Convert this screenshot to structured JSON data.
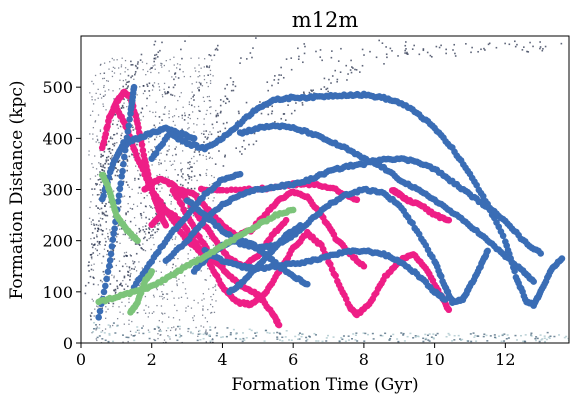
{
  "chart_data": {
    "type": "scatter",
    "title": "m12m",
    "xlabel": "Formation Time (Gyr)",
    "ylabel": "Formation Distance (kpc)",
    "xlim": [
      0,
      13.8
    ],
    "ylim": [
      0,
      600
    ],
    "xticks": [
      0,
      2,
      4,
      6,
      8,
      10,
      12
    ],
    "yticks": [
      0,
      100,
      200,
      300,
      400,
      500
    ],
    "grid": false,
    "legend": "none",
    "colors": {
      "background_density": "#1a2440",
      "pink": "#ee1e86",
      "blue": "#3a6db5",
      "green": "#7cc47a",
      "disk": "#a9c6cc"
    },
    "series": [
      {
        "color": "pink",
        "tracks": [
          [
            [
              0.6,
              380
            ],
            [
              0.8,
              440
            ],
            [
              1.0,
              470
            ],
            [
              1.2,
              490
            ],
            [
              1.4,
              480
            ],
            [
              1.6,
              430
            ],
            [
              1.8,
              360
            ],
            [
              2.0,
              300
            ],
            [
              2.2,
              260
            ],
            [
              2.4,
              230
            ]
          ],
          [
            [
              1.0,
              460
            ],
            [
              1.3,
              420
            ],
            [
              1.6,
              360
            ],
            [
              2.0,
              300
            ],
            [
              2.5,
              250
            ],
            [
              3.0,
              200
            ],
            [
              3.5,
              170
            ],
            [
              4.0,
              150
            ]
          ],
          [
            [
              1.8,
              300
            ],
            [
              2.2,
              320
            ],
            [
              2.6,
              310
            ],
            [
              3.0,
              280
            ],
            [
              3.4,
              240
            ],
            [
              3.8,
              200
            ],
            [
              4.2,
              165
            ],
            [
              4.6,
              150
            ],
            [
              5.0,
              170
            ],
            [
              5.4,
              210
            ],
            [
              5.8,
              240
            ]
          ],
          [
            [
              2.0,
              230
            ],
            [
              2.4,
              260
            ],
            [
              2.8,
              240
            ],
            [
              3.2,
              200
            ],
            [
              3.6,
              160
            ],
            [
              4.0,
              110
            ],
            [
              4.4,
              80
            ],
            [
              4.8,
              75
            ],
            [
              5.2,
              95
            ],
            [
              5.6,
              140
            ],
            [
              6.0,
              185
            ],
            [
              6.4,
              215
            ],
            [
              6.8,
              190
            ],
            [
              7.2,
              130
            ],
            [
              7.6,
              70
            ],
            [
              7.8,
              55
            ],
            [
              8.2,
              80
            ],
            [
              8.6,
              130
            ],
            [
              9.0,
              160
            ],
            [
              9.4,
              175
            ],
            [
              9.8,
              140
            ],
            [
              10.2,
              90
            ],
            [
              10.4,
              65
            ]
          ],
          [
            [
              2.6,
              300
            ],
            [
              3.0,
              250
            ],
            [
              3.4,
              200
            ],
            [
              3.8,
              160
            ],
            [
              4.2,
              130
            ],
            [
              4.6,
              110
            ],
            [
              5.0,
              95
            ],
            [
              5.4,
              60
            ],
            [
              5.6,
              35
            ]
          ],
          [
            [
              2.8,
              300
            ],
            [
              3.2,
              290
            ],
            [
              3.6,
              260
            ],
            [
              4.0,
              230
            ],
            [
              4.4,
              210
            ],
            [
              4.8,
              220
            ],
            [
              5.2,
              250
            ],
            [
              5.6,
              280
            ],
            [
              6.0,
              295
            ],
            [
              6.4,
              285
            ],
            [
              6.8,
              250
            ],
            [
              7.2,
              205
            ],
            [
              7.6,
              175
            ],
            [
              8.0,
              150
            ]
          ],
          [
            [
              3.4,
              300
            ],
            [
              4.0,
              300
            ],
            [
              5.0,
              300
            ],
            [
              6.0,
              310
            ],
            [
              6.6,
              310
            ],
            [
              7.2,
              300
            ],
            [
              7.8,
              280
            ]
          ],
          [
            [
              8.8,
              300
            ],
            [
              9.0,
              290
            ],
            [
              9.2,
              280
            ],
            [
              9.6,
              270
            ],
            [
              10.0,
              250
            ],
            [
              10.4,
              240
            ]
          ]
        ]
      },
      {
        "color": "blue",
        "tracks": [
          [
            [
              0.5,
              50
            ],
            [
              0.8,
              150
            ],
            [
              1.0,
              250
            ],
            [
              1.2,
              350
            ],
            [
              1.4,
              450
            ],
            [
              1.5,
              500
            ]
          ],
          [
            [
              0.6,
              280
            ],
            [
              0.9,
              350
            ],
            [
              1.2,
              390
            ],
            [
              1.6,
              400
            ],
            [
              2.0,
              410
            ],
            [
              2.4,
              420
            ],
            [
              2.8,
              410
            ],
            [
              3.2,
              400
            ]
          ],
          [
            [
              2.0,
              360
            ],
            [
              2.5,
              410
            ],
            [
              3.0,
              390
            ],
            [
              3.5,
              380
            ],
            [
              4.0,
              400
            ],
            [
              4.5,
              430
            ],
            [
              5.0,
              460
            ],
            [
              5.5,
              475
            ],
            [
              6.0,
              480
            ],
            [
              6.5,
              480
            ],
            [
              7.0,
              483
            ],
            [
              7.5,
              485
            ],
            [
              8.0,
              485
            ],
            [
              8.5,
              480
            ],
            [
              9.0,
              470
            ],
            [
              9.5,
              450
            ],
            [
              10.0,
              420
            ],
            [
              10.5,
              380
            ],
            [
              11.0,
              330
            ],
            [
              11.5,
              270
            ],
            [
              12.0,
              200
            ],
            [
              12.3,
              130
            ],
            [
              12.6,
              80
            ],
            [
              12.8,
              75
            ],
            [
              13.0,
              100
            ],
            [
              13.3,
              145
            ],
            [
              13.6,
              165
            ]
          ],
          [
            [
              4.5,
              410
            ],
            [
              5.0,
              420
            ],
            [
              5.5,
              425
            ],
            [
              6.0,
              420
            ],
            [
              6.5,
              410
            ],
            [
              7.0,
              395
            ],
            [
              7.5,
              380
            ],
            [
              8.0,
              360
            ],
            [
              8.5,
              345
            ],
            [
              9.0,
              320
            ],
            [
              9.5,
              300
            ],
            [
              10.0,
              280
            ],
            [
              10.5,
              255
            ],
            [
              11.0,
              230
            ],
            [
              11.5,
              200
            ],
            [
              12.0,
              170
            ],
            [
              12.5,
              140
            ],
            [
              12.8,
              120
            ]
          ],
          [
            [
              2.4,
              160
            ],
            [
              3.0,
              200
            ],
            [
              3.5,
              240
            ],
            [
              4.0,
              270
            ],
            [
              4.5,
              290
            ],
            [
              5.0,
              300
            ],
            [
              5.5,
              305
            ],
            [
              6.0,
              310
            ],
            [
              6.5,
              320
            ],
            [
              7.0,
              335
            ],
            [
              7.5,
              345
            ],
            [
              8.0,
              350
            ],
            [
              8.5,
              360
            ],
            [
              9.0,
              360
            ],
            [
              9.5,
              355
            ],
            [
              10.0,
              340
            ],
            [
              10.5,
              315
            ],
            [
              11.0,
              290
            ],
            [
              11.5,
              265
            ],
            [
              12.0,
              240
            ],
            [
              12.5,
              200
            ],
            [
              13.0,
              175
            ]
          ],
          [
            [
              3.0,
              280
            ],
            [
              3.5,
              250
            ],
            [
              4.0,
              220
            ],
            [
              4.5,
              195
            ],
            [
              5.0,
              185
            ],
            [
              5.5,
              190
            ],
            [
              6.0,
              210
            ],
            [
              6.5,
              240
            ],
            [
              7.0,
              270
            ],
            [
              7.5,
              290
            ],
            [
              8.0,
              300
            ],
            [
              8.5,
              295
            ],
            [
              9.0,
              270
            ],
            [
              9.5,
              220
            ],
            [
              10.0,
              160
            ],
            [
              10.3,
              110
            ],
            [
              10.5,
              80
            ],
            [
              10.8,
              85
            ],
            [
              11.0,
              110
            ],
            [
              11.3,
              150
            ],
            [
              11.5,
              180
            ]
          ],
          [
            [
              3.5,
              180
            ],
            [
              4.0,
              160
            ],
            [
              4.5,
              150
            ],
            [
              5.0,
              145
            ],
            [
              5.5,
              150
            ],
            [
              6.0,
              155
            ],
            [
              6.5,
              160
            ],
            [
              7.0,
              170
            ],
            [
              7.5,
              178
            ],
            [
              8.0,
              180
            ],
            [
              8.5,
              175
            ],
            [
              9.0,
              160
            ],
            [
              9.5,
              135
            ],
            [
              10.0,
              100
            ],
            [
              10.3,
              85
            ]
          ],
          [
            [
              1.5,
              110
            ],
            [
              2.0,
              160
            ],
            [
              2.5,
              210
            ],
            [
              3.0,
              250
            ],
            [
              3.5,
              290
            ],
            [
              4.0,
              320
            ],
            [
              4.5,
              330
            ]
          ],
          [
            [
              3.2,
              140
            ],
            [
              3.6,
              170
            ],
            [
              4.0,
              190
            ],
            [
              4.4,
              200
            ],
            [
              4.8,
              195
            ],
            [
              5.2,
              175
            ],
            [
              5.6,
              150
            ],
            [
              6.0,
              130
            ],
            [
              6.4,
              115
            ]
          ],
          [
            [
              4.2,
              100
            ],
            [
              4.6,
              120
            ],
            [
              5.0,
              150
            ],
            [
              5.4,
              180
            ],
            [
              5.8,
              210
            ],
            [
              6.2,
              230
            ]
          ]
        ]
      },
      {
        "color": "green",
        "tracks": [
          [
            [
              0.5,
              80
            ],
            [
              1.0,
              90
            ],
            [
              1.5,
              100
            ],
            [
              2.0,
              110
            ],
            [
              2.5,
              130
            ],
            [
              3.0,
              150
            ],
            [
              3.5,
              170
            ],
            [
              4.0,
              190
            ],
            [
              4.5,
              210
            ],
            [
              5.0,
              230
            ],
            [
              5.5,
              250
            ],
            [
              6.0,
              260
            ]
          ],
          [
            [
              0.6,
              330
            ],
            [
              0.8,
              300
            ],
            [
              1.0,
              250
            ],
            [
              1.3,
              220
            ],
            [
              1.6,
              200
            ]
          ],
          [
            [
              1.4,
              60
            ],
            [
              1.6,
              80
            ],
            [
              1.8,
              120
            ],
            [
              2.0,
              140
            ]
          ]
        ]
      }
    ]
  }
}
